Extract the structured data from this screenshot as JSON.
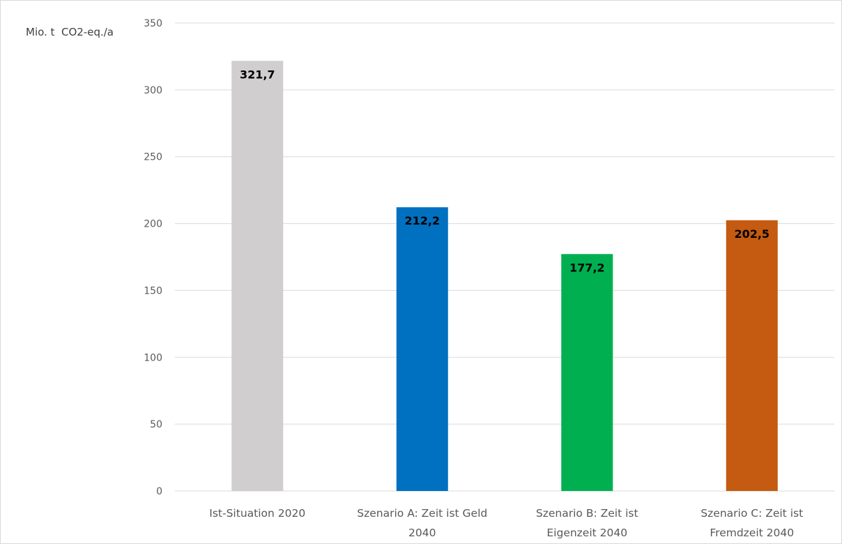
{
  "chart_data": {
    "type": "bar",
    "title": "",
    "xlabel": "",
    "ylabel": "Mio. t  CO2-eq./a",
    "ylim": [
      0,
      350
    ],
    "yticks": [
      0,
      50,
      100,
      150,
      200,
      250,
      300,
      350
    ],
    "ytick_labels": [
      "0",
      "50",
      "100",
      "150",
      "200",
      "250",
      "300",
      "350"
    ],
    "grid": true,
    "categories": [
      [
        "Ist-Situation 2020"
      ],
      [
        "Szenario A: Zeit ist Geld",
        "2040"
      ],
      [
        "Szenario B: Zeit ist",
        "Eigenzeit 2040"
      ],
      [
        "Szenario C: Zeit ist",
        "Fremdzeit 2040"
      ]
    ],
    "values": [
      321.7,
      212.2,
      177.2,
      202.5
    ],
    "data_labels": [
      "321,7",
      "212,2",
      "177,2",
      "202,5"
    ],
    "colors": [
      "#d0cece",
      "#0070c0",
      "#00b050",
      "#c55a11"
    ],
    "gridline_color": "#d9d9d9"
  }
}
